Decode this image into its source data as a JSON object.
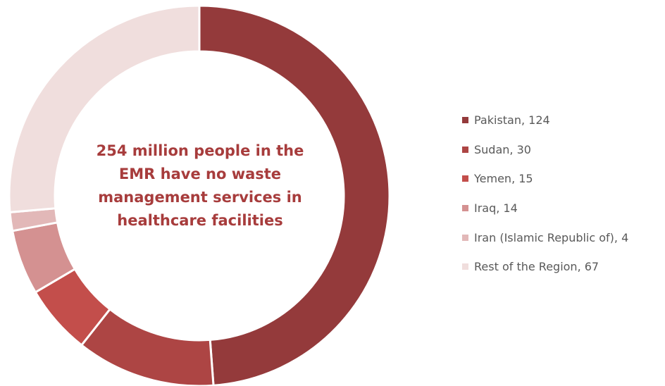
{
  "chart_data": {
    "type": "pie",
    "subtype": "donut",
    "center_text": "254 million people in the EMR have no waste management services in healthcare facilities",
    "legend_position": "right",
    "slices": [
      {
        "label": "Pakistan",
        "value": 124,
        "legend_text": "Pakistan, 124",
        "color": "#943a3b"
      },
      {
        "label": "Sudan",
        "value": 30,
        "legend_text": "Sudan, 30",
        "color": "#ad4544"
      },
      {
        "label": "Yemen",
        "value": 15,
        "legend_text": "Yemen, 15",
        "color": "#c34e4b"
      },
      {
        "label": "Iraq",
        "value": 14,
        "legend_text": "Iraq, 14",
        "color": "#d49191"
      },
      {
        "label": "Iran (Islamic Republic of)",
        "value": 4,
        "legend_text": "Iran (Islamic Republic of), 4",
        "color": "#e2b8b8"
      },
      {
        "label": "Rest of the Region",
        "value": 67,
        "legend_text": "Rest of the Region, 67",
        "color": "#f0dedd"
      }
    ]
  }
}
